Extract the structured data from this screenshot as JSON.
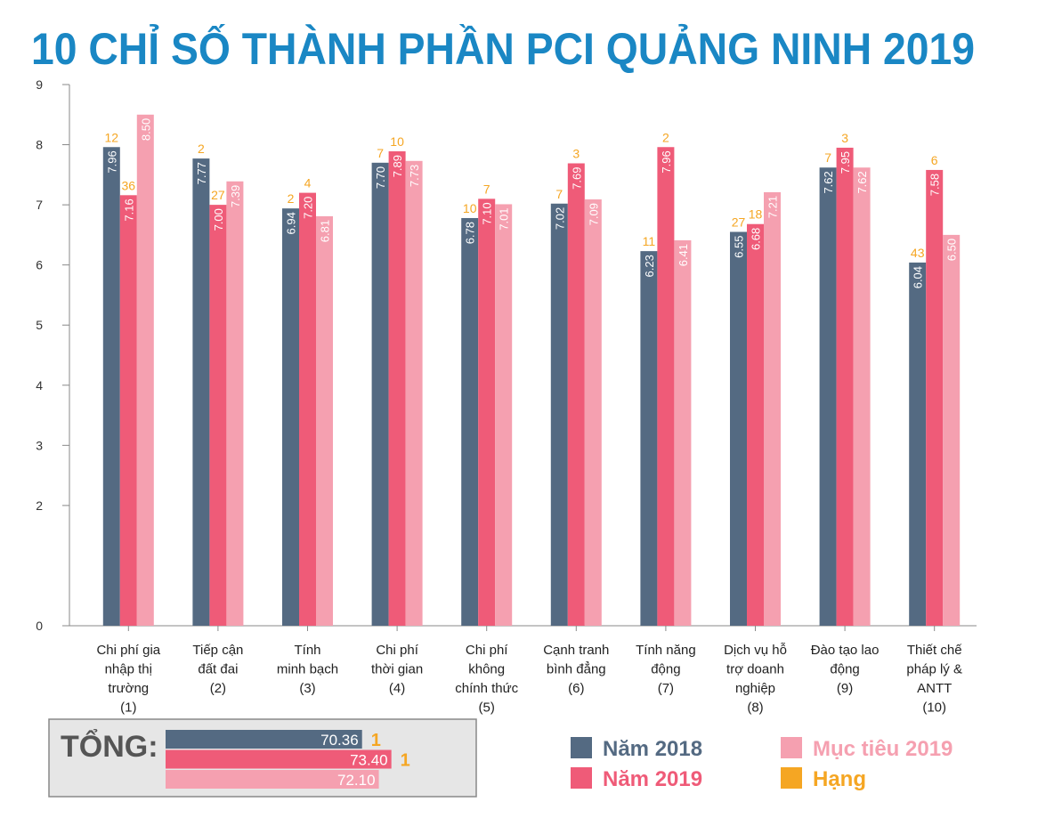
{
  "chart_data": {
    "type": "bar",
    "title": "10 CHỈ SỐ THÀNH PHẦN PCI QUẢNG NINH 2019",
    "categories": [
      [
        "Chi phí gia",
        "nhập thị",
        "trường",
        "(1)"
      ],
      [
        "Tiếp cận",
        "đất đai",
        "(2)"
      ],
      [
        "Tính",
        "minh bạch",
        "(3)"
      ],
      [
        "Chi phí",
        "thời gian",
        "(4)"
      ],
      [
        "Chi phí",
        "không",
        "chính thức",
        "(5)"
      ],
      [
        "Cạnh tranh",
        "bình đẳng",
        "(6)"
      ],
      [
        "Tính năng",
        "động",
        "(7)"
      ],
      [
        "Dịch vụ hỗ",
        "trợ doanh",
        "nghiệp",
        "(8)"
      ],
      [
        "Đào tạo lao",
        "động",
        "(9)"
      ],
      [
        "Thiết chế",
        "pháp lý &",
        "ANTT",
        "(10)"
      ]
    ],
    "series": [
      {
        "name": "Năm 2018",
        "color": "#546a82",
        "values": [
          7.96,
          7.77,
          6.94,
          7.7,
          6.78,
          7.02,
          6.23,
          6.55,
          7.62,
          6.04
        ],
        "value_labels": [
          "7.96",
          "7.77",
          "6.94",
          "7.70",
          "6.78",
          "7.02",
          "6.23",
          "6.55",
          "7.62",
          "6.04"
        ],
        "ranks": [
          12,
          2,
          2,
          7,
          10,
          7,
          11,
          27,
          7,
          43
        ]
      },
      {
        "name": "Năm 2019",
        "color": "#ef5b78",
        "values": [
          7.16,
          7,
          7.2,
          7.89,
          7.1,
          7.69,
          7.96,
          6.68,
          7.95,
          7.58
        ],
        "value_labels": [
          "7.16",
          "7.00",
          "7.20",
          "7.89",
          "7.10",
          "7.69",
          "7.96",
          "6.68",
          "7.95",
          "7.58"
        ],
        "ranks": [
          36,
          27,
          4,
          10,
          7,
          3,
          2,
          18,
          3,
          6
        ]
      },
      {
        "name": "Mục tiêu 2019",
        "color": "#f5a0b0",
        "values": [
          8.5,
          7.39,
          6.81,
          7.73,
          7.01,
          7.09,
          6.41,
          7.21,
          7.62,
          6.5
        ],
        "value_labels": [
          "8.50",
          "7.39",
          "6.81",
          "7.73",
          "7.01",
          "7.09",
          "6.41",
          "7.21",
          "7.62",
          "6.50"
        ]
      }
    ],
    "rank_legend": {
      "name": "Hạng",
      "color": "#f5a623"
    },
    "ylim": [
      0,
      9
    ],
    "yticks": [
      0,
      2,
      3,
      4,
      5,
      6,
      7,
      8,
      9
    ],
    "totals": {
      "label": "TỔNG:",
      "values": [
        70.36,
        73.4,
        72.1
      ],
      "value_labels": [
        "70.36",
        "73.40",
        "72.10"
      ],
      "ranks": [
        1,
        1,
        null
      ],
      "xlim": [
        50,
        75
      ]
    }
  }
}
